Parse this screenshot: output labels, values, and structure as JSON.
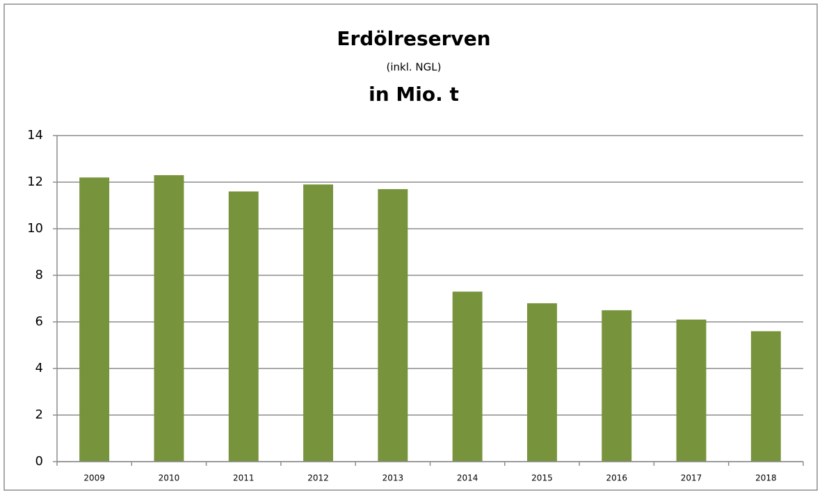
{
  "chart_data": {
    "type": "bar",
    "title": "Erdölreserven",
    "subtitle": "(inkl. NGL)",
    "unit_title": "in Mio. t",
    "categories": [
      "2009",
      "2010",
      "2011",
      "2012",
      "2013",
      "2014",
      "2015",
      "2016",
      "2017",
      "2018"
    ],
    "values": [
      12.2,
      12.3,
      11.6,
      11.9,
      11.7,
      7.3,
      6.8,
      6.5,
      6.1,
      5.6
    ],
    "color": "#77933c",
    "ylim": [
      0,
      14
    ],
    "yticks": [
      0,
      2,
      4,
      6,
      8,
      10,
      12,
      14
    ],
    "grid": true
  }
}
